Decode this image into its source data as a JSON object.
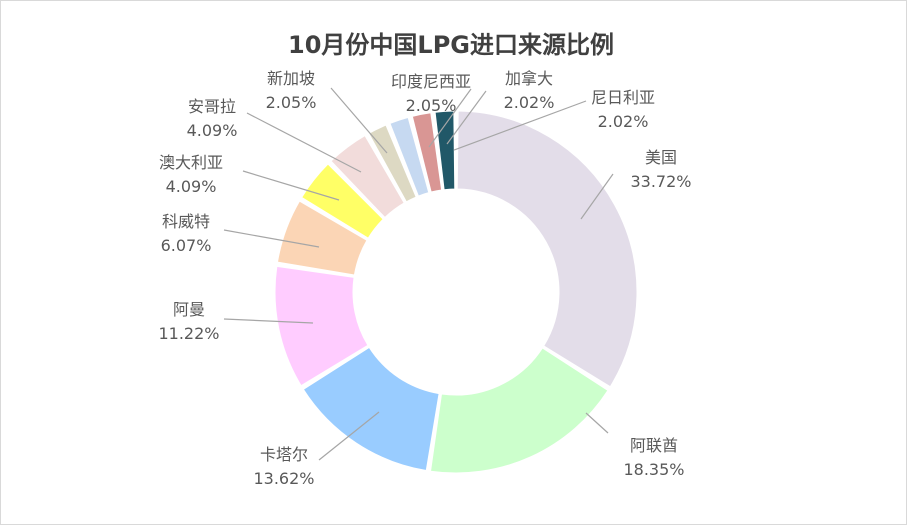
{
  "chart_data": {
    "type": "pie",
    "variant": "donut",
    "title": "10月份中国LPG进口来源比例",
    "categories": [
      "美国",
      "阿联酋",
      "卡塔尔",
      "阿曼",
      "科威特",
      "澳大利亚",
      "安哥拉",
      "新加坡",
      "印度尼西亚",
      "加拿大",
      "尼日利亚"
    ],
    "values": [
      33.72,
      18.35,
      13.62,
      11.22,
      6.07,
      4.09,
      4.09,
      2.05,
      2.05,
      2.02,
      2.02
    ],
    "value_labels": [
      "33.72%",
      "18.35%",
      "13.62%",
      "11.22%",
      "6.07%",
      "4.09%",
      "4.09%",
      "2.05%",
      "2.05%",
      "2.02%",
      "2.02%"
    ],
    "colors": [
      "#e3dde9",
      "#ccffcc",
      "#99ccff",
      "#ffccff",
      "#fbd5b5",
      "#ffff66",
      "#f2dcdb",
      "#ddd9c3",
      "#c6d9f1",
      "#d99694",
      "#215868",
      "#c55a11"
    ],
    "legend": "none",
    "label_position": "outside-with-leader-lines"
  }
}
